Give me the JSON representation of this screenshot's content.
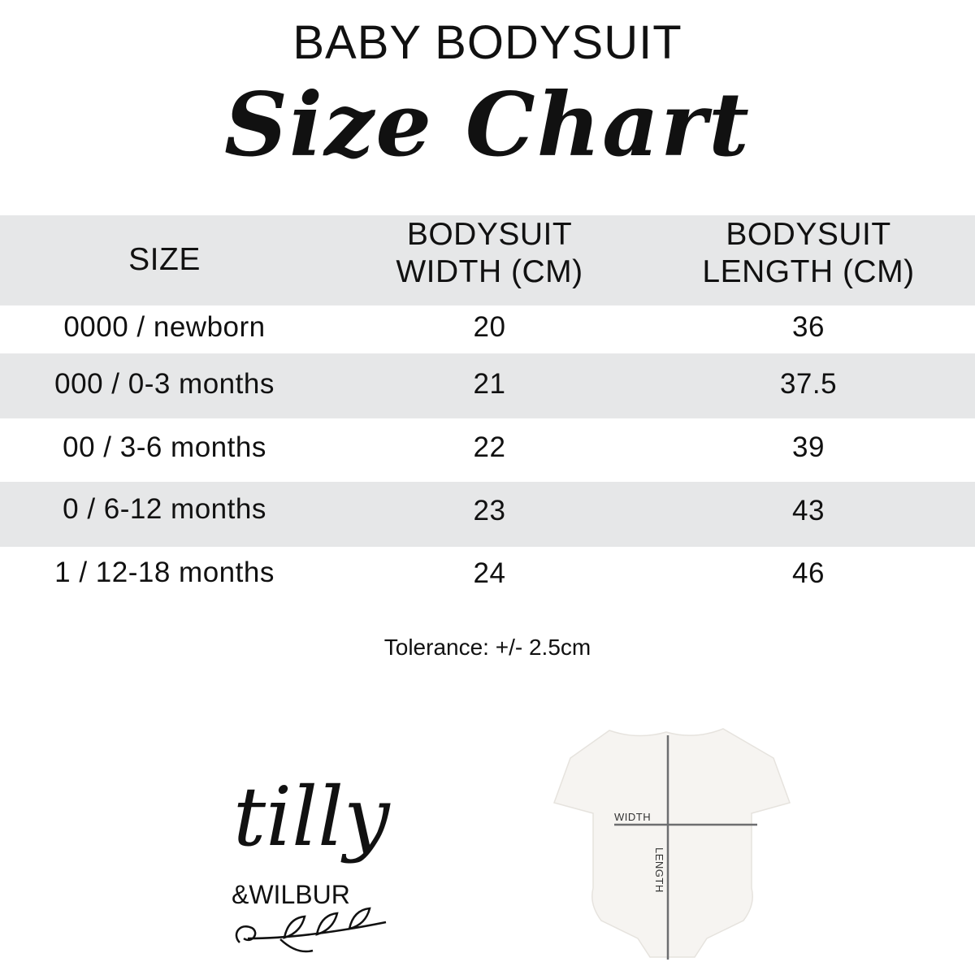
{
  "title": "BABY BODYSUIT",
  "subtitle": "Size Chart",
  "table": {
    "headers": [
      "SIZE",
      "BODYSUIT WIDTH (CM)",
      "BODYSUIT LENGTH (CM)"
    ],
    "header_lines": {
      "width": [
        "BODYSUIT",
        "WIDTH (CM)"
      ],
      "length": [
        "BODYSUIT",
        "LENGTH (CM)"
      ]
    },
    "rows": [
      [
        "0000 / newborn",
        "20",
        "36"
      ],
      [
        "000 / 0-3 months",
        "21",
        "37.5"
      ],
      [
        "00 / 3-6 months",
        "22",
        "39"
      ],
      [
        "0 / 6-12 months",
        "23",
        "43"
      ],
      [
        "1 / 12-18 months",
        "24",
        "46"
      ]
    ]
  },
  "tolerance": "Tolerance: +/- 2.5cm",
  "logo": {
    "line1": "tilly",
    "line2": "&WILBUR"
  },
  "diagram": {
    "width_label": "WIDTH",
    "length_label": "LENGTH"
  },
  "colors": {
    "band": "#e6e7e8",
    "text": "#111111",
    "measure_line": "#6d6e70"
  }
}
